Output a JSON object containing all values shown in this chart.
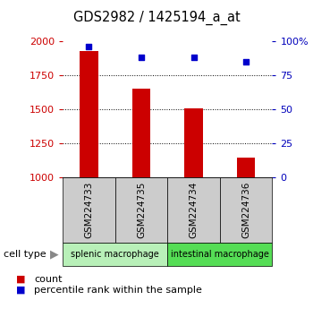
{
  "title": "GDS2982 / 1425194_a_at",
  "samples": [
    "GSM224733",
    "GSM224735",
    "GSM224734",
    "GSM224736"
  ],
  "counts": [
    1930,
    1650,
    1510,
    1145
  ],
  "percentile_ranks": [
    96,
    88,
    88,
    85
  ],
  "groups": [
    {
      "label": "splenic macrophage",
      "samples": [
        0,
        1
      ],
      "color": "#b8f0b8"
    },
    {
      "label": "intestinal macrophage",
      "samples": [
        2,
        3
      ],
      "color": "#55dd55"
    }
  ],
  "bar_color": "#cc0000",
  "dot_color": "#0000cc",
  "left_axis_color": "#cc0000",
  "right_axis_color": "#0000bb",
  "ylim_left": [
    1000,
    2000
  ],
  "ylim_right": [
    0,
    100
  ],
  "yticks_left": [
    1000,
    1250,
    1500,
    1750,
    2000
  ],
  "yticks_right": [
    0,
    25,
    50,
    75,
    100
  ],
  "yticklabels_right": [
    "0",
    "25",
    "50",
    "75",
    "100%"
  ],
  "grid_values": [
    1250,
    1500,
    1750
  ],
  "bar_width": 0.35,
  "background_color": "#ffffff",
  "sample_box_color": "#cccccc",
  "cell_type_label": "cell type"
}
